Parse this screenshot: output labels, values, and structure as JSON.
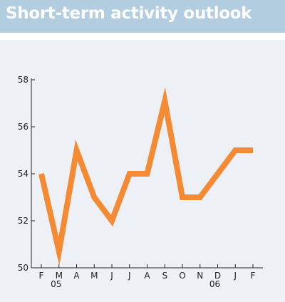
{
  "chart_data": {
    "type": "line",
    "title": "Short-term activity outlook",
    "categories": [
      "F",
      "M",
      "A",
      "M",
      "J",
      "J",
      "A",
      "S",
      "O",
      "N",
      "D",
      "J",
      "F"
    ],
    "year_labels": [
      {
        "label": "05",
        "category_index": 1
      },
      {
        "label": "06",
        "category_index": 10
      }
    ],
    "series": [
      {
        "values": [
          54,
          50.7,
          55,
          53,
          52,
          54,
          54,
          57.1,
          53,
          53,
          54,
          55,
          55
        ],
        "color": "#f58a34"
      }
    ],
    "ylim": [
      50,
      58
    ],
    "yticks": [
      50,
      52,
      54,
      56,
      58
    ],
    "grid": false,
    "legend": "none"
  }
}
